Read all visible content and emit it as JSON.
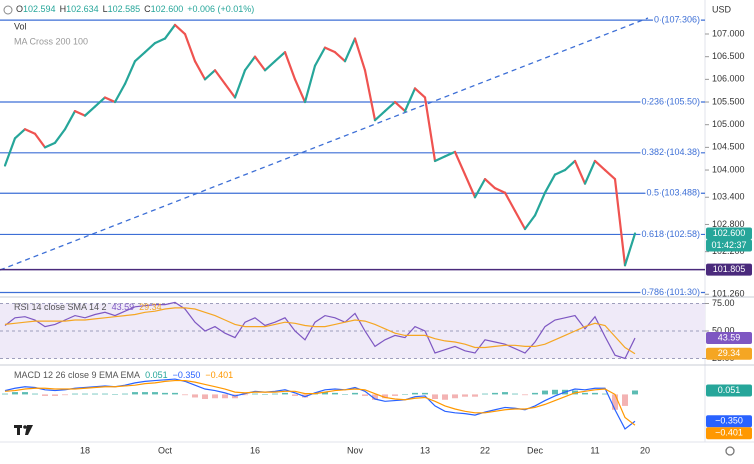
{
  "chart_data": [
    {
      "type": "line",
      "header": {
        "open_label": "O",
        "open": 102.594,
        "high_label": "H",
        "high": 102.634,
        "low_label": "L",
        "low": 102.585,
        "close_label": "C",
        "close": {
          "value": 102.6,
          "label": "102.600"
        },
        "change": "+0.006 (+0.01%)"
      },
      "indicators": [
        "Vol",
        "MA Cross 200 100"
      ],
      "currency": "USD",
      "categories": [
        null,
        null,
        null,
        null,
        null,
        null,
        null,
        null,
        "18",
        null,
        null,
        null,
        null,
        null,
        null,
        null,
        "Oct",
        null,
        null,
        null,
        null,
        null,
        null,
        null,
        null,
        "16",
        null,
        null,
        null,
        null,
        null,
        null,
        null,
        null,
        null,
        "Nov",
        null,
        null,
        null,
        null,
        null,
        null,
        "13",
        null,
        null,
        null,
        null,
        null,
        "22",
        null,
        null,
        null,
        null,
        "Dec",
        null,
        null,
        null,
        null,
        null,
        "11",
        null,
        null,
        null,
        null,
        "20"
      ],
      "values": [
        104.1,
        104.7,
        104.9,
        104.8,
        104.5,
        104.6,
        104.9,
        105.3,
        105.2,
        105.4,
        105.6,
        105.5,
        105.9,
        106.4,
        106.6,
        106.8,
        106.9,
        107.2,
        107.0,
        106.4,
        106.0,
        106.2,
        105.9,
        105.6,
        106.2,
        106.5,
        106.2,
        106.4,
        106.6,
        106.0,
        105.5,
        106.3,
        106.7,
        106.6,
        106.4,
        106.9,
        106.2,
        105.1,
        105.3,
        105.5,
        105.3,
        105.8,
        105.6,
        104.2,
        104.3,
        104.4,
        103.9,
        103.4,
        103.8,
        103.6,
        103.5,
        103.1,
        102.7,
        103.0,
        103.5,
        103.9,
        104.0,
        104.2,
        103.7,
        104.2,
        104.0,
        103.8,
        101.9,
        102.6,
        null
      ],
      "up_color": "#26a69a",
      "down_color": "#ef5350",
      "ylim": [
        101.2,
        107.75
      ],
      "yticks": [
        {
          "value": 107,
          "label": "107.000"
        },
        {
          "value": 106.5,
          "label": "106.500"
        },
        {
          "value": 106,
          "label": "106.000"
        },
        {
          "value": 105.5,
          "label": "105.500"
        },
        {
          "value": 105,
          "label": "105.000"
        },
        {
          "value": 104.5,
          "label": "104.500"
        },
        {
          "value": 104,
          "label": "104.000"
        },
        {
          "value": 103.4,
          "label": "103.400"
        },
        {
          "value": 102.8,
          "label": "102.800"
        },
        {
          "value": 102.2,
          "label": "102.200"
        },
        {
          "value": 101.26,
          "label": "101.260"
        }
      ],
      "fib_color": "#3d6fd6",
      "fib_levels": [
        {
          "value": 107.306,
          "label": "0 (107.306)"
        },
        {
          "value": 105.5,
          "label": "0.236 (105.50)"
        },
        {
          "value": 104.38,
          "label": "0.382 (104.38)"
        },
        {
          "value": 103.488,
          "label": "0.5 (103.488)"
        },
        {
          "value": 102.58,
          "label": "0.618 (102.58)"
        },
        {
          "value": 101.3,
          "label": "0.786 (101.30)"
        }
      ],
      "price_line": {
        "value": 101.805,
        "label": "101.805",
        "color": "#4a2a7c"
      },
      "last_price": {
        "value": 102.6,
        "label": "102.600",
        "color": "#26a69a"
      },
      "countdown": "01:42:37"
    },
    {
      "type": "line",
      "title": "RSI 14 close SMA 14 2",
      "series": [
        {
          "color": "#7e57c2",
          "values": [
            55,
            62,
            63,
            60,
            54,
            56,
            60,
            64,
            62,
            65,
            67,
            64,
            68,
            72,
            73,
            74,
            74,
            76,
            70,
            58,
            50,
            54,
            48,
            44,
            58,
            62,
            55,
            58,
            62,
            50,
            42,
            58,
            64,
            62,
            58,
            66,
            50,
            36,
            42,
            46,
            44,
            54,
            50,
            30,
            33,
            36,
            32,
            30,
            42,
            40,
            38,
            34,
            30,
            40,
            54,
            60,
            62,
            64,
            52,
            63,
            45,
            28,
            25,
            43.59,
            null
          ]
        },
        {
          "color": "#f5a623",
          "values": [
            56,
            57,
            58,
            59,
            59,
            59,
            59,
            60,
            60,
            61,
            62,
            63,
            64,
            65,
            67,
            68,
            70,
            71,
            71,
            70,
            67,
            64,
            60,
            56,
            54,
            54,
            54,
            56,
            58,
            57,
            55,
            54,
            54,
            56,
            58,
            60,
            59,
            56,
            52,
            48,
            46,
            46,
            46,
            43,
            41,
            40,
            38,
            35,
            35,
            36,
            37,
            37,
            36,
            36,
            38,
            42,
            46,
            50,
            54,
            57,
            55,
            45,
            35,
            29.34,
            null
          ]
        }
      ],
      "ylim": [
        20,
        80
      ],
      "yticks": [
        {
          "value": 75,
          "label": "75.00"
        },
        {
          "value": 50,
          "label": "50.00"
        },
        {
          "value": 25,
          "label": "25.00"
        }
      ],
      "grid": true,
      "band_color": "#efeaf8"
    },
    {
      "type": "line",
      "title": "MACD 12 26 close 9 EMA EMA",
      "series": [
        {
          "type": "bar",
          "color": "#26a69a",
          "negative_color": "#ef9a9a",
          "values": [
            0.01,
            0.03,
            0.03,
            0.01,
            -0.02,
            -0.02,
            -0.01,
            0.01,
            0.01,
            0.01,
            0.01,
            0,
            0.01,
            0.03,
            0.03,
            0.03,
            0.02,
            0.02,
            -0.01,
            -0.04,
            -0.06,
            -0.05,
            -0.05,
            -0.05,
            -0.01,
            0.01,
            0,
            0.01,
            0.02,
            -0.02,
            -0.04,
            0.01,
            0.03,
            0.02,
            0,
            0.02,
            -0.02,
            -0.07,
            -0.05,
            -0.02,
            0,
            0.02,
            0.02,
            -0.06,
            -0.07,
            -0.05,
            -0.03,
            -0.03,
            0.01,
            0.02,
            0.03,
            0.01,
            -0.01,
            0.02,
            0.05,
            0.06,
            0.06,
            0.05,
            0.02,
            0.02,
            0.01,
            -0.2,
            -0.15,
            0.051,
            null
          ]
        },
        {
          "color": "#2962ff",
          "last_label": "−0.350",
          "values": [
            0.05,
            0.08,
            0.1,
            0.09,
            0.06,
            0.05,
            0.06,
            0.08,
            0.09,
            0.1,
            0.11,
            0.1,
            0.12,
            0.15,
            0.17,
            0.18,
            0.19,
            0.2,
            0.17,
            0.12,
            0.07,
            0.05,
            0.02,
            -0.02,
            0.01,
            0.04,
            0.03,
            0.04,
            0.06,
            0.02,
            -0.03,
            0.02,
            0.06,
            0.07,
            0.06,
            0.09,
            0.04,
            -0.06,
            -0.09,
            -0.08,
            -0.07,
            -0.03,
            -0.02,
            -0.15,
            -0.22,
            -0.24,
            -0.25,
            -0.27,
            -0.23,
            -0.2,
            -0.17,
            -0.18,
            -0.2,
            -0.15,
            -0.08,
            -0.02,
            0.03,
            0.07,
            0.06,
            0.08,
            0.08,
            -0.2,
            -0.45,
            -0.35,
            null
          ]
        },
        {
          "color": "#ff9800",
          "last_label": "−0.401",
          "values": [
            0.04,
            0.05,
            0.07,
            0.08,
            0.08,
            0.07,
            0.07,
            0.07,
            0.08,
            0.09,
            0.1,
            0.1,
            0.11,
            0.12,
            0.14,
            0.15,
            0.17,
            0.18,
            0.18,
            0.16,
            0.13,
            0.1,
            0.07,
            0.03,
            0.02,
            0.03,
            0.03,
            0.03,
            0.04,
            0.04,
            0.01,
            0.01,
            0.03,
            0.05,
            0.06,
            0.07,
            0.06,
            0.01,
            -0.04,
            -0.06,
            -0.07,
            -0.05,
            -0.04,
            -0.09,
            -0.15,
            -0.19,
            -0.22,
            -0.24,
            -0.24,
            -0.22,
            -0.2,
            -0.19,
            -0.19,
            -0.17,
            -0.13,
            -0.08,
            -0.03,
            0.02,
            0.04,
            0.06,
            0.07,
            0,
            -0.3,
            -0.401,
            null
          ]
        }
      ],
      "ylim": [
        -0.62,
        0.37
      ]
    }
  ]
}
